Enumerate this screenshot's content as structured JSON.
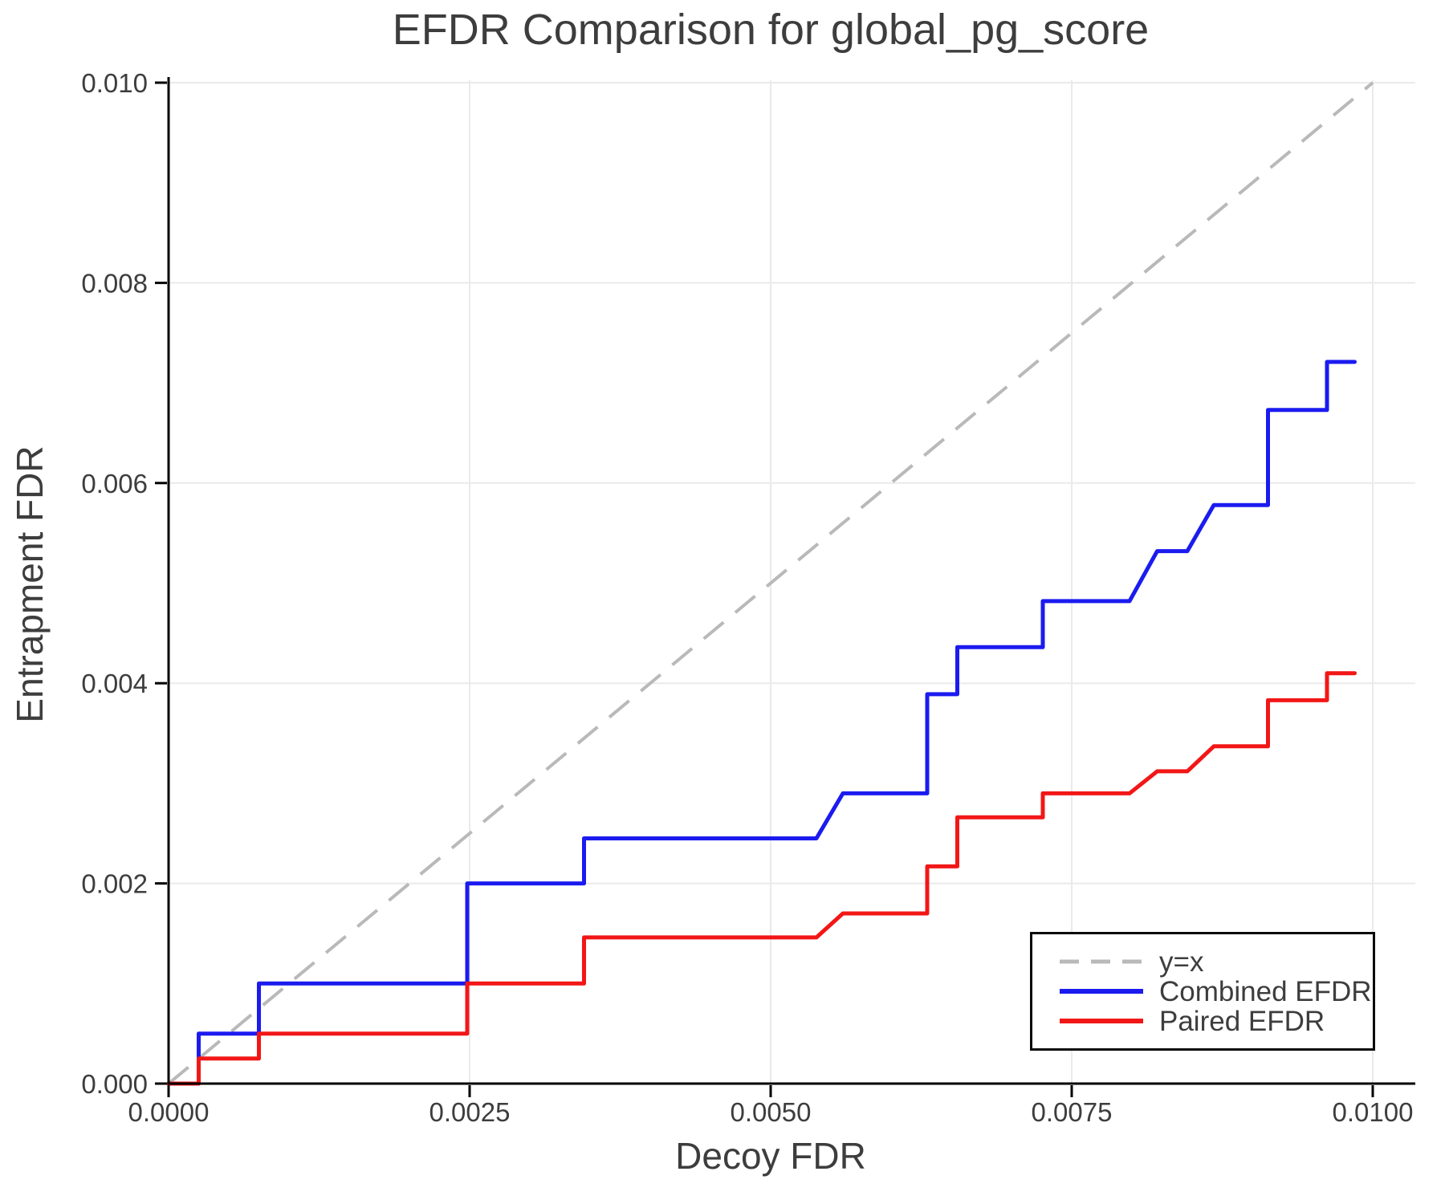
{
  "chart_data": {
    "type": "line",
    "title": "EFDR Comparison for global_pg_score",
    "xlabel": "Decoy FDR",
    "ylabel": "Entrapment FDR",
    "xlim": [
      0,
      0.01
    ],
    "ylim": [
      0,
      0.01
    ],
    "grid": true,
    "legend_position": "lower right",
    "x_ticks": [
      0.0,
      0.0025,
      0.005,
      0.0075,
      0.01
    ],
    "x_tick_labels": [
      "0.0000",
      "0.0025",
      "0.0050",
      "0.0075",
      "0.0100"
    ],
    "y_ticks": [
      0.0,
      0.002,
      0.004,
      0.006,
      0.008,
      0.01
    ],
    "y_tick_labels": [
      "0.000",
      "0.002",
      "0.004",
      "0.006",
      "0.008",
      "0.010"
    ],
    "colors": {
      "grid": "#eaeaea",
      "axis": "#000000",
      "text": "#3d3d3d",
      "identity_line": "#b9b9b9",
      "combined": "#1b1bf0",
      "paired": "#f21717"
    },
    "series": [
      {
        "name": "y=x",
        "style": "dashed",
        "color": "#b9b9b9",
        "width": 4,
        "points": [
          [
            0,
            0
          ],
          [
            0.01,
            0.01
          ]
        ]
      },
      {
        "name": "Combined EFDR",
        "style": "solid",
        "color": "#1b1bf0",
        "width": 5,
        "points": [
          [
            0,
            0
          ],
          [
            0.00025,
            0
          ],
          [
            0.00025,
            0.0005
          ],
          [
            0.00075,
            0.0005
          ],
          [
            0.00075,
            0.001
          ],
          [
            0.00248,
            0.001
          ],
          [
            0.00248,
            0.002
          ],
          [
            0.00345,
            0.002
          ],
          [
            0.00345,
            0.00245
          ],
          [
            0.00538,
            0.00245
          ],
          [
            0.0056,
            0.0029
          ],
          [
            0.0063,
            0.0029
          ],
          [
            0.0063,
            0.00389
          ],
          [
            0.00655,
            0.00389
          ],
          [
            0.00655,
            0.00436
          ],
          [
            0.00726,
            0.00436
          ],
          [
            0.00726,
            0.00482
          ],
          [
            0.00798,
            0.00482
          ],
          [
            0.00821,
            0.00532
          ],
          [
            0.00846,
            0.00532
          ],
          [
            0.00868,
            0.00578
          ],
          [
            0.00913,
            0.00578
          ],
          [
            0.00913,
            0.00673
          ],
          [
            0.00962,
            0.00673
          ],
          [
            0.00962,
            0.00721
          ],
          [
            0.00985,
            0.00721
          ]
        ]
      },
      {
        "name": "Paired EFDR",
        "style": "solid",
        "color": "#f21717",
        "width": 5,
        "points": [
          [
            0,
            0
          ],
          [
            0.00025,
            0
          ],
          [
            0.00025,
            0.00025
          ],
          [
            0.00075,
            0.00025
          ],
          [
            0.00075,
            0.0005
          ],
          [
            0.00248,
            0.0005
          ],
          [
            0.00248,
            0.001
          ],
          [
            0.00345,
            0.001
          ],
          [
            0.00345,
            0.00146
          ],
          [
            0.00538,
            0.00146
          ],
          [
            0.0056,
            0.0017
          ],
          [
            0.0063,
            0.0017
          ],
          [
            0.0063,
            0.00217
          ],
          [
            0.00655,
            0.00217
          ],
          [
            0.00655,
            0.00266
          ],
          [
            0.00726,
            0.00266
          ],
          [
            0.00726,
            0.0029
          ],
          [
            0.00798,
            0.0029
          ],
          [
            0.00821,
            0.00312
          ],
          [
            0.00846,
            0.00312
          ],
          [
            0.00868,
            0.00337
          ],
          [
            0.00913,
            0.00337
          ],
          [
            0.00913,
            0.00383
          ],
          [
            0.00962,
            0.00383
          ],
          [
            0.00962,
            0.0041
          ],
          [
            0.00985,
            0.0041
          ]
        ]
      }
    ]
  }
}
